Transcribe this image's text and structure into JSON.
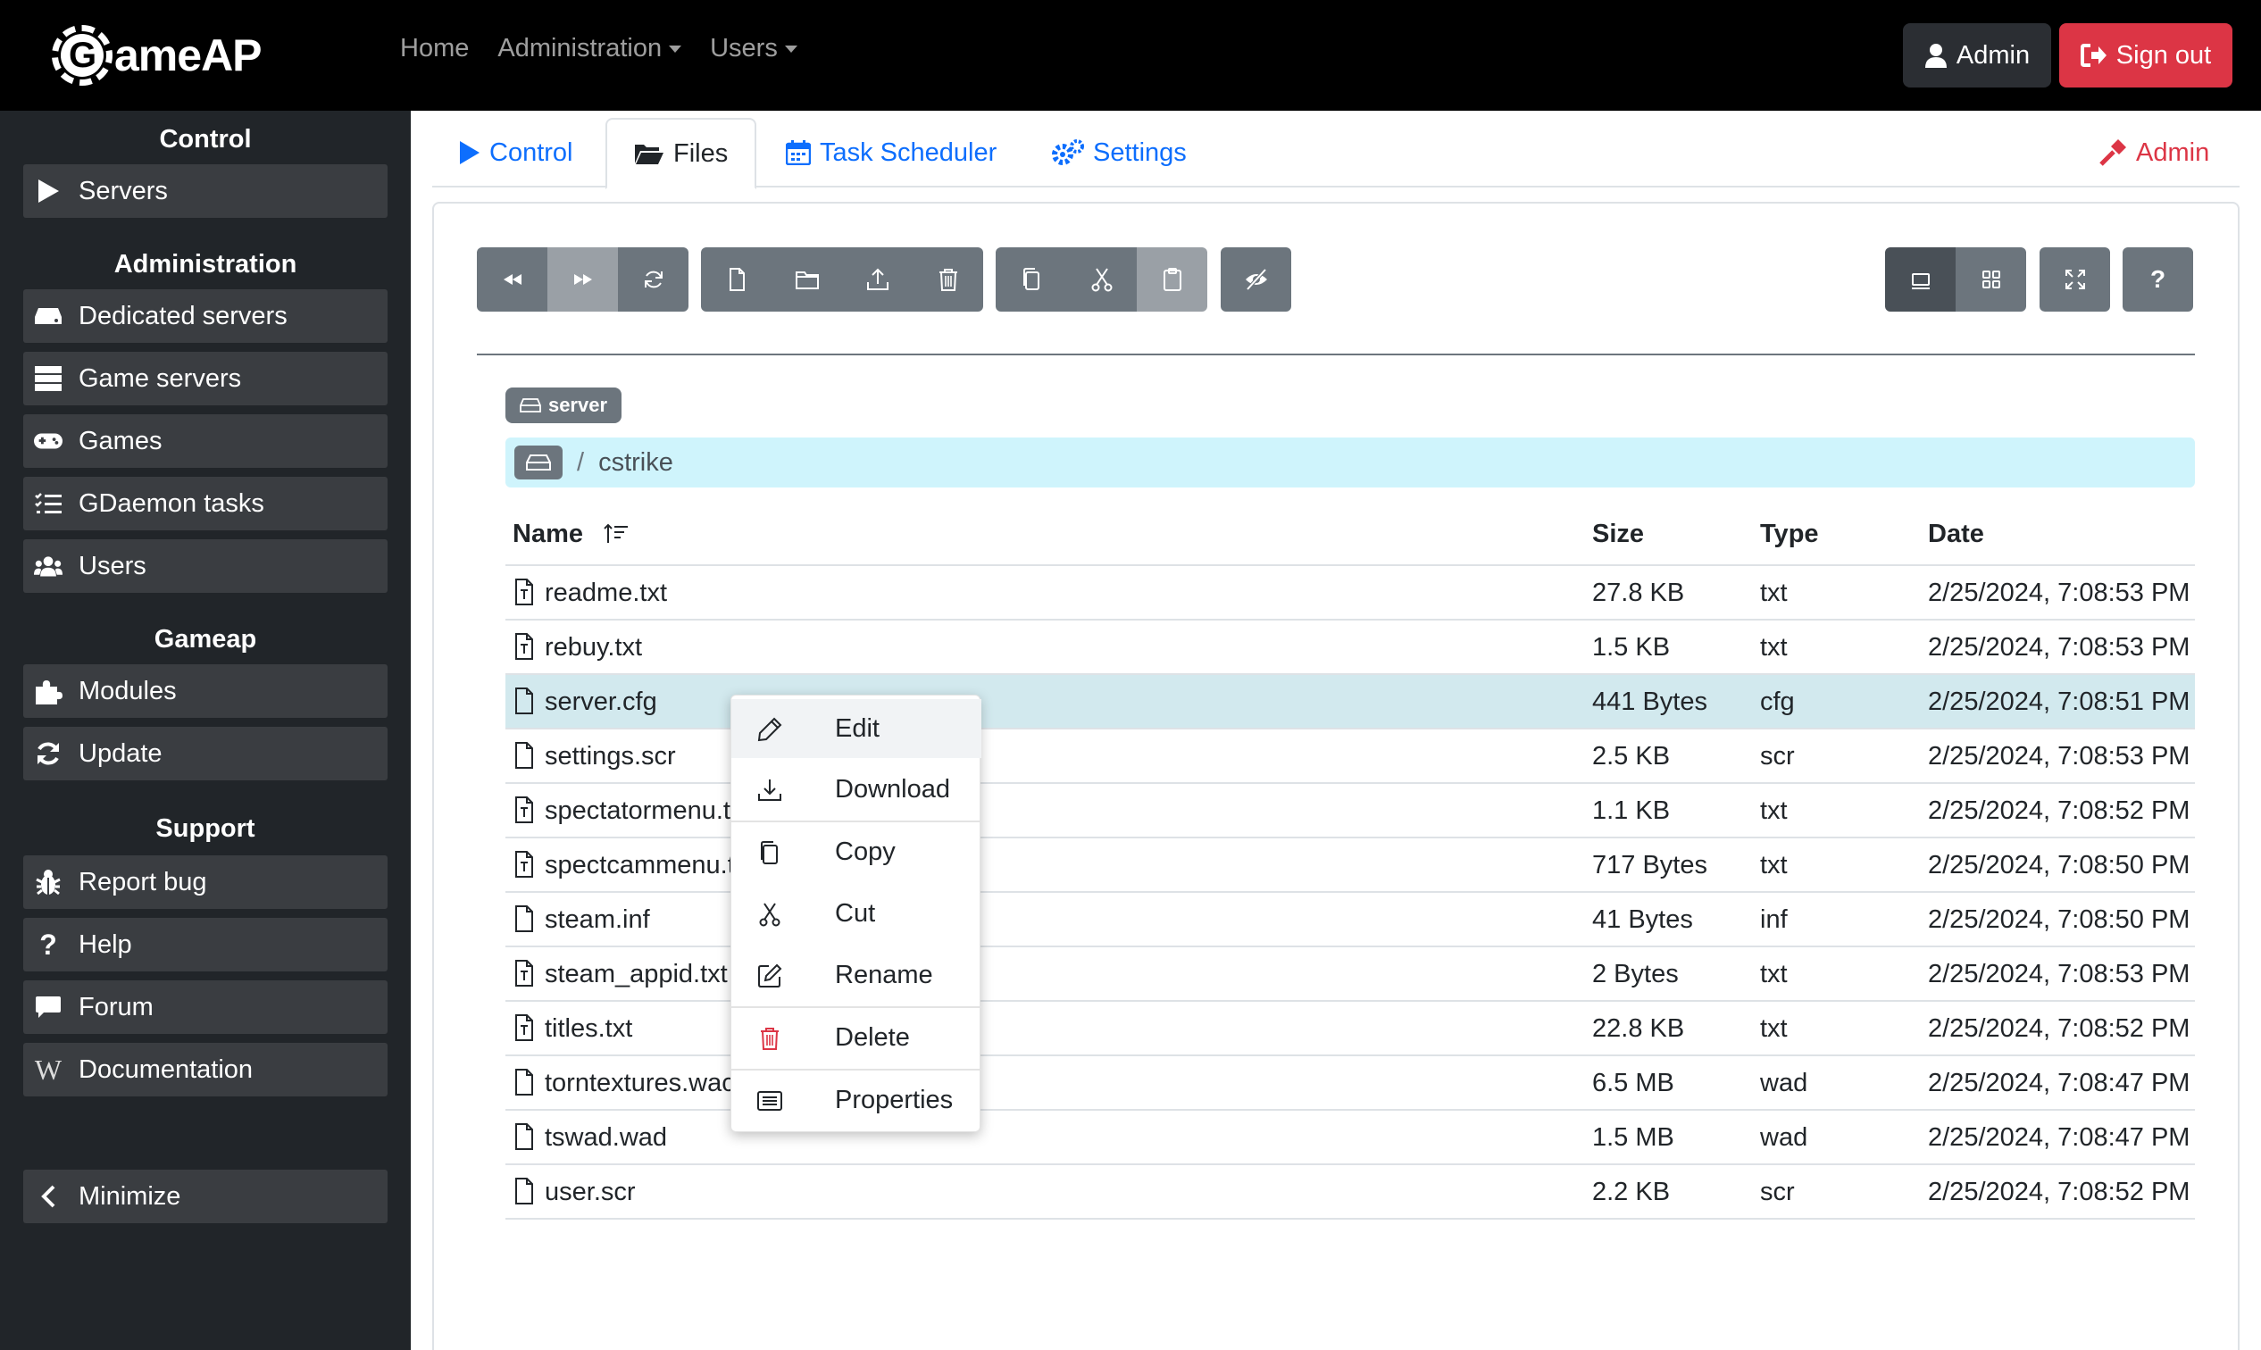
{
  "brand": {
    "logo_letter": "G",
    "logo_rest": "ameAP"
  },
  "nav": {
    "links": [
      {
        "label": "Home"
      },
      {
        "label": "Administration"
      },
      {
        "label": "Users"
      }
    ],
    "admin_label": "Admin",
    "signout_label": "Sign out"
  },
  "sidebar": {
    "sections": [
      {
        "title": "Control",
        "items": [
          "Servers"
        ]
      },
      {
        "title": "Administration",
        "items": [
          "Dedicated servers",
          "Game servers",
          "Games",
          "GDaemon tasks",
          "Users"
        ]
      },
      {
        "title": "Gameap",
        "items": [
          "Modules",
          "Update"
        ]
      },
      {
        "title": "Support",
        "items": [
          "Report bug",
          "Help",
          "Forum",
          "Documentation"
        ]
      }
    ],
    "minimize_label": "Minimize"
  },
  "tabs": {
    "control": "Control",
    "files": "Files",
    "task_scheduler": "Task Scheduler",
    "settings": "Settings",
    "admin": "Admin"
  },
  "file_manager": {
    "disk_badge": "server",
    "breadcrumb_sep": "/",
    "current_folder": "cstrike",
    "columns": {
      "name": "Name",
      "size": "Size",
      "type": "Type",
      "date": "Date"
    },
    "help_label": "?",
    "files": [
      {
        "name": "readme.txt",
        "size": "27.8 KB",
        "type": "txt",
        "date": "2/25/2024, 7:08:53 PM",
        "icon": "text-file-icon"
      },
      {
        "name": "rebuy.txt",
        "size": "1.5 KB",
        "type": "txt",
        "date": "2/25/2024, 7:08:53 PM",
        "icon": "text-file-icon"
      },
      {
        "name": "server.cfg",
        "size": "441 Bytes",
        "type": "cfg",
        "date": "2/25/2024, 7:08:51 PM",
        "icon": "file-icon",
        "selected": true
      },
      {
        "name": "settings.scr",
        "size": "2.5 KB",
        "type": "scr",
        "date": "2/25/2024, 7:08:53 PM",
        "icon": "file-icon"
      },
      {
        "name": "spectatormenu.t",
        "size": "1.1 KB",
        "type": "txt",
        "date": "2/25/2024, 7:08:52 PM",
        "icon": "text-file-icon"
      },
      {
        "name": "spectcammenu.t",
        "size": "717 Bytes",
        "type": "txt",
        "date": "2/25/2024, 7:08:50 PM",
        "icon": "text-file-icon"
      },
      {
        "name": "steam.inf",
        "size": "41 Bytes",
        "type": "inf",
        "date": "2/25/2024, 7:08:50 PM",
        "icon": "file-icon"
      },
      {
        "name": "steam_appid.txt",
        "size": "2 Bytes",
        "type": "txt",
        "date": "2/25/2024, 7:08:53 PM",
        "icon": "text-file-icon"
      },
      {
        "name": "titles.txt",
        "size": "22.8 KB",
        "type": "txt",
        "date": "2/25/2024, 7:08:52 PM",
        "icon": "text-file-icon"
      },
      {
        "name": "torntextures.wac",
        "size": "6.5 MB",
        "type": "wad",
        "date": "2/25/2024, 7:08:47 PM",
        "icon": "file-icon"
      },
      {
        "name": "tswad.wad",
        "size": "1.5 MB",
        "type": "wad",
        "date": "2/25/2024, 7:08:47 PM",
        "icon": "file-icon"
      },
      {
        "name": "user.scr",
        "size": "2.2 KB",
        "type": "scr",
        "date": "2/25/2024, 7:08:52 PM",
        "icon": "file-icon"
      }
    ]
  },
  "context_menu": {
    "items": [
      {
        "label": "Edit",
        "icon": "pencil-icon"
      },
      {
        "label": "Download",
        "icon": "download-icon"
      },
      {
        "label": "Copy",
        "icon": "copy-icon"
      },
      {
        "label": "Cut",
        "icon": "scissors-icon"
      },
      {
        "label": "Rename",
        "icon": "rename-icon"
      },
      {
        "label": "Delete",
        "icon": "trash-icon"
      },
      {
        "label": "Properties",
        "icon": "properties-icon"
      }
    ]
  },
  "colors": {
    "primary": "#0d6efd",
    "danger": "#dc3545",
    "sidebar_bg": "#212529",
    "breadcrumb_bg": "#cff4fc",
    "selected_row": "#d2e9ee"
  }
}
